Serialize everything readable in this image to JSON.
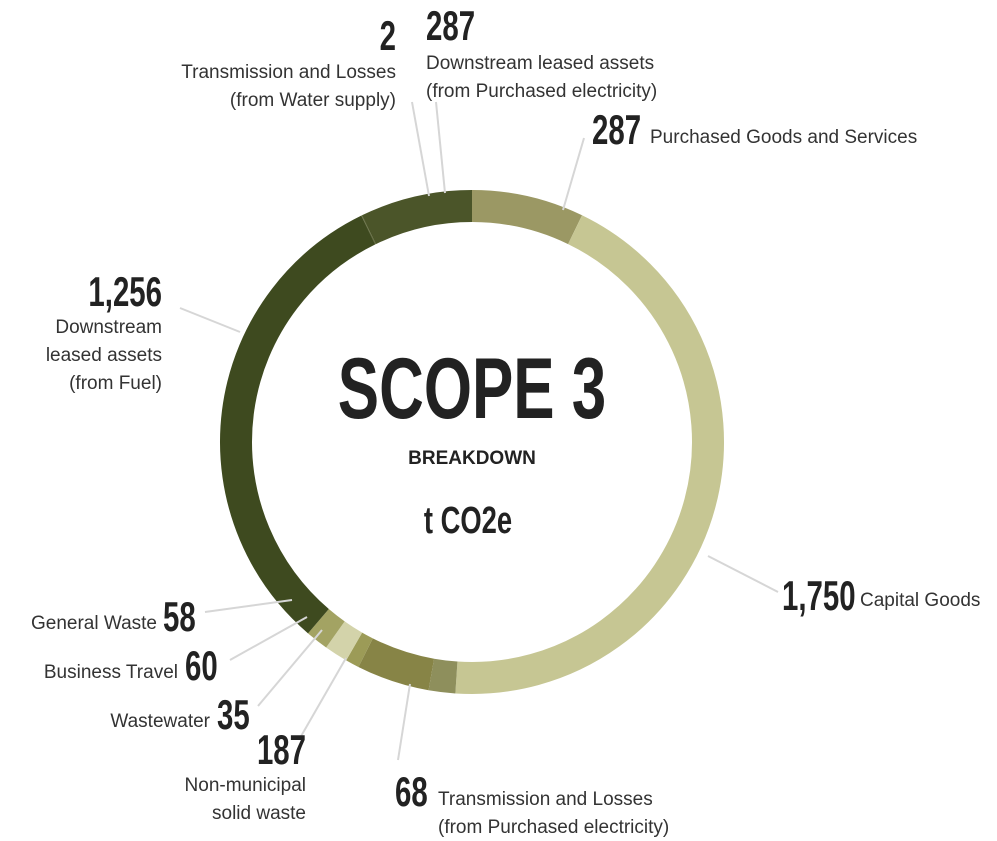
{
  "chart_data": {
    "type": "donut",
    "title": "SCOPE 3",
    "subtitle": "BREAKDOWN",
    "unit": "t CO2e",
    "categories": [
      [
        "Purchased Goods and Services"
      ],
      [
        "Capital Goods"
      ],
      [
        "Transmission and Losses",
        "(from Purchased electricity)"
      ],
      [
        "Non-municipal",
        "solid waste"
      ],
      [
        "Wastewater"
      ],
      [
        "Business Travel"
      ],
      [
        "General Waste"
      ],
      [
        "Downstream",
        "leased assets",
        "(from Fuel)"
      ],
      [
        "Transmission and Losses",
        "(from Water supply)"
      ],
      [
        "Downstream leased assets",
        "(from Purchased electricity)"
      ]
    ],
    "values": [
      287,
      1750,
      68,
      187,
      35,
      60,
      58,
      1256,
      2,
      287
    ],
    "value_labels": [
      "287",
      "1,750",
      "68",
      "187",
      "35",
      "60",
      "58",
      "1,256",
      "2",
      "287"
    ],
    "colors": [
      "#9b9864",
      "#c6c693",
      "#8e8f5c",
      "#878446",
      "#9c9b57",
      "#d3d3aa",
      "#a3a363",
      "#3e4a1f",
      "#5f6739",
      "#4b5529"
    ]
  }
}
